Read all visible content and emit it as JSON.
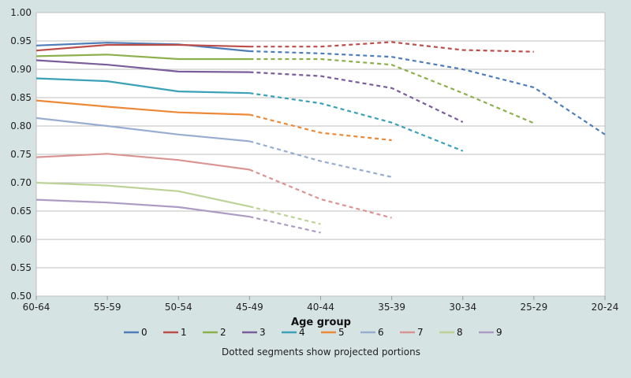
{
  "chart_data": {
    "type": "line",
    "xlabel": "Age group",
    "ylabel": "",
    "categories": [
      "60-64",
      "55-59",
      "50-54",
      "45-49",
      "40-44",
      "35-39",
      "30-34",
      "25-29",
      "20-24"
    ],
    "ylim": [
      0.5,
      1.0
    ],
    "yticks": [
      "0.50",
      "0.55",
      "0.60",
      "0.65",
      "0.70",
      "0.75",
      "0.80",
      "0.85",
      "0.90",
      "0.95",
      "1.00"
    ],
    "grid": true,
    "legend_position": "bottom",
    "note": "Dotted segments show projected portions",
    "series": [
      {
        "name": "0",
        "color": "#4f7db8",
        "values": [
          0.942,
          0.947,
          0.944,
          0.932,
          0.928,
          0.922,
          0.9,
          0.868,
          0.785
        ],
        "projected_from_index": 3
      },
      {
        "name": "1",
        "color": "#bc4d4a",
        "values": [
          0.933,
          0.943,
          0.943,
          0.94,
          0.94,
          0.948,
          0.934,
          0.931,
          null
        ],
        "projected_from_index": 3
      },
      {
        "name": "2",
        "color": "#8db04d",
        "values": [
          0.923,
          0.926,
          0.918,
          0.918,
          0.918,
          0.908,
          0.858,
          0.805,
          null
        ],
        "projected_from_index": 3
      },
      {
        "name": "3",
        "color": "#7a5d9b",
        "values": [
          0.916,
          0.908,
          0.896,
          0.895,
          0.888,
          0.867,
          0.807,
          null,
          null
        ],
        "projected_from_index": 3
      },
      {
        "name": "4",
        "color": "#3aa1b7",
        "values": [
          0.884,
          0.879,
          0.861,
          0.858,
          0.84,
          0.806,
          0.756,
          null,
          null
        ],
        "projected_from_index": 3
      },
      {
        "name": "5",
        "color": "#ec8937",
        "values": [
          0.845,
          0.834,
          0.824,
          0.82,
          0.788,
          0.775,
          null,
          null,
          null
        ],
        "projected_from_index": 3
      },
      {
        "name": "6",
        "color": "#98adcf",
        "values": [
          0.814,
          0.8,
          0.785,
          0.773,
          0.738,
          0.71,
          null,
          null,
          null
        ],
        "projected_from_index": 3
      },
      {
        "name": "7",
        "color": "#d99593",
        "values": [
          0.745,
          0.751,
          0.74,
          0.723,
          0.671,
          0.638,
          null,
          null,
          null
        ],
        "projected_from_index": 3
      },
      {
        "name": "8",
        "color": "#bcd296",
        "values": [
          0.7,
          0.695,
          0.685,
          0.658,
          0.627,
          null,
          null,
          null,
          null
        ],
        "projected_from_index": 3
      },
      {
        "name": "9",
        "color": "#ac9bc3",
        "values": [
          0.67,
          0.665,
          0.657,
          0.64,
          0.612,
          null,
          null,
          null,
          null
        ],
        "projected_from_index": 3
      }
    ]
  }
}
